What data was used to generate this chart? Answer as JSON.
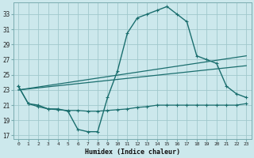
{
  "title": "",
  "xlabel": "Humidex (Indice chaleur)",
  "xlim": [
    -0.5,
    23.5
  ],
  "ylim": [
    16.5,
    34.5
  ],
  "yticks": [
    17,
    19,
    21,
    23,
    25,
    27,
    29,
    31,
    33
  ],
  "xticks": [
    0,
    1,
    2,
    3,
    4,
    5,
    6,
    7,
    8,
    9,
    10,
    11,
    12,
    13,
    14,
    15,
    16,
    17,
    18,
    19,
    20,
    21,
    22,
    23
  ],
  "bg_color": "#cce8ec",
  "grid_color": "#a0c8cc",
  "line_color": "#1a6e6e",
  "main_x": [
    0,
    1,
    2,
    3,
    4,
    5,
    6,
    7,
    8,
    9,
    10,
    11,
    12,
    13,
    14,
    15,
    16,
    17,
    18,
    19,
    20,
    21,
    22,
    23
  ],
  "main_y": [
    23.5,
    21.2,
    21.0,
    20.5,
    20.5,
    20.2,
    17.8,
    17.5,
    17.5,
    22.0,
    25.5,
    30.5,
    32.5,
    33.0,
    33.5,
    34.0,
    33.0,
    32.0,
    27.5,
    27.0,
    26.5,
    23.5,
    22.5,
    22.0
  ],
  "low_x": [
    0,
    1,
    2,
    3,
    4,
    5,
    6,
    7,
    8,
    9,
    10,
    11,
    12,
    13,
    14,
    15,
    16,
    17,
    18,
    19,
    20,
    21,
    22,
    23
  ],
  "low_y": [
    23.5,
    21.2,
    20.8,
    20.5,
    20.4,
    20.3,
    20.3,
    20.2,
    20.2,
    20.3,
    20.4,
    20.5,
    20.7,
    20.8,
    21.0,
    21.0,
    21.0,
    21.0,
    21.0,
    21.0,
    21.0,
    21.0,
    21.0,
    21.2
  ],
  "trend1_x": [
    0,
    23
  ],
  "trend1_y": [
    23.0,
    27.5
  ],
  "trend2_x": [
    0,
    23
  ],
  "trend2_y": [
    23.0,
    26.2
  ]
}
